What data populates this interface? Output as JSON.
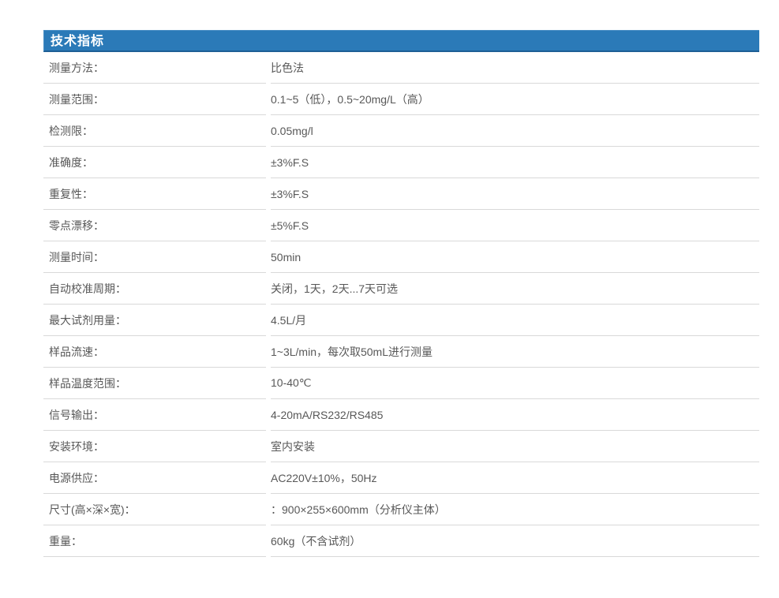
{
  "table": {
    "header": "技术指标",
    "rows": [
      {
        "label": "测量方法：",
        "value": "比色法"
      },
      {
        "label": "测量范围：",
        "value": "0.1~5（低），0.5~20mg/L（高）"
      },
      {
        "label": "检测限：",
        "value": "0.05mg/l"
      },
      {
        "label": "准确度：",
        "value": "±3%F.S"
      },
      {
        "label": "重复性：",
        "value": "±3%F.S"
      },
      {
        "label": "零点漂移：",
        "value": "±5%F.S"
      },
      {
        "label": "测量时间：",
        "value": "50min"
      },
      {
        "label": "自动校准周期：",
        "value": "关闭，1天，2天...7天可选"
      },
      {
        "label": "最大试剂用量：",
        "value": "4.5L/月"
      },
      {
        "label": "样品流速：",
        "value": "1~3L/min，每次取50mL进行测量"
      },
      {
        "label": "样品温度范围：",
        "value": "10-40℃"
      },
      {
        "label": "信号输出：",
        "value": "4-20mA/RS232/RS485"
      },
      {
        "label": "安装环境：",
        "value": "室内安装"
      },
      {
        "label": "电源供应：",
        "value": "AC220V±10%，50Hz"
      },
      {
        "label": "尺寸(高×深×宽)：",
        "value": "：900×255×600mm（分析仪主体）"
      },
      {
        "label": "重量：",
        "value": "60kg（不含试剂）"
      }
    ]
  },
  "colors": {
    "header_bg": "#2b7ab8",
    "header_border": "#1e5f95",
    "header_edge": "#4a8ec4",
    "header_text": "#ffffff",
    "text": "#585858",
    "divider": "#d9d9d9",
    "page_bg": "#ffffff"
  }
}
